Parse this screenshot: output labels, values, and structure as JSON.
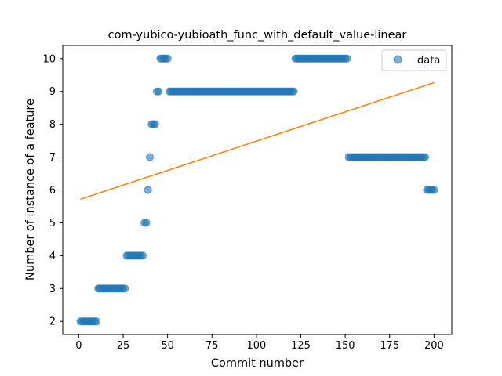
{
  "chart_data": {
    "type": "scatter",
    "title": "com-yubico-yubioath_func_with_default_value-linear",
    "xlabel": "Commit number",
    "ylabel": "Number of instance of a feature",
    "xlim": [
      -9,
      210
    ],
    "ylim": [
      1.6,
      10.4
    ],
    "xticks": [
      0,
      25,
      50,
      75,
      100,
      125,
      150,
      175,
      200
    ],
    "yticks": [
      2,
      3,
      4,
      5,
      6,
      7,
      8,
      9,
      10
    ],
    "legend": {
      "position": "top-right",
      "entries": [
        "data"
      ]
    },
    "colors": {
      "points": "#1f77b4",
      "fit_line": "#ff7f0e"
    },
    "grid": false,
    "series": [
      {
        "name": "data",
        "kind": "scatter",
        "segments": [
          {
            "x_start": 1,
            "x_end": 10,
            "y": 2
          },
          {
            "x_start": 11,
            "x_end": 26,
            "y": 3
          },
          {
            "x_start": 27,
            "x_end": 36,
            "y": 4
          },
          {
            "x_start": 37,
            "x_end": 38,
            "y": 5
          },
          {
            "x_start": 39,
            "x_end": 39,
            "y": 6
          },
          {
            "x_start": 40,
            "x_end": 40,
            "y": 7
          },
          {
            "x_start": 41,
            "x_end": 43,
            "y": 8
          },
          {
            "x_start": 44,
            "x_end": 45,
            "y": 9
          },
          {
            "x_start": 46,
            "x_end": 50,
            "y": 10
          },
          {
            "x_start": 51,
            "x_end": 121,
            "y": 9
          },
          {
            "x_start": 122,
            "x_end": 151,
            "y": 10
          },
          {
            "x_start": 152,
            "x_end": 195,
            "y": 7
          },
          {
            "x_start": 196,
            "x_end": 200,
            "y": 6
          }
        ]
      },
      {
        "kind": "line",
        "x": [
          1,
          200
        ],
        "y": [
          5.72,
          9.27
        ]
      }
    ]
  }
}
